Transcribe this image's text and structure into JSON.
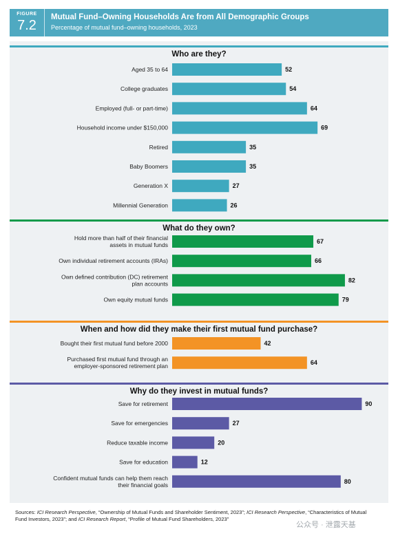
{
  "figure": {
    "word": "FIGURE",
    "number": "7.2"
  },
  "title": "Mutual Fund–Owning Households Are from All Demographic Groups",
  "subtitle": "Percentage of mutual fund–owning households, 2023",
  "chart_data": {
    "type": "bar",
    "orientation": "horizontal",
    "xlim": [
      0,
      100
    ],
    "grid": false,
    "show_values": true,
    "sections": [
      {
        "title": "Who are they?",
        "color": "#3fa9bf",
        "categories": [
          "Aged 35 to 64",
          "College graduates",
          "Employed (full- or part-time)",
          "Household income under $150,000",
          "Retired",
          "Baby Boomers",
          "Generation X",
          "Millennial Generation"
        ],
        "values": [
          52,
          54,
          64,
          69,
          35,
          35,
          27,
          26
        ]
      },
      {
        "title": "What do they own?",
        "color": "#0f9a4a",
        "categories": [
          "Hold more than half of their financial assets in mutual funds",
          "Own individual retirement accounts (IRAs)",
          "Own defined contribution (DC) retirement plan accounts",
          "Own equity mutual funds"
        ],
        "values": [
          67,
          66,
          82,
          79
        ]
      },
      {
        "title": "When and how did they make their first mutual fund purchase?",
        "color": "#f39325",
        "categories": [
          "Bought their first mutual fund before 2000",
          "Purchased first mutual fund through an employer-sponsored retirement plan"
        ],
        "values": [
          42,
          64
        ]
      },
      {
        "title": "Why do they invest in mutual funds?",
        "color": "#5c5aa5",
        "categories": [
          "Save for retirement",
          "Save for emergencies",
          "Reduce taxable income",
          "Save for education",
          "Confident mutual funds can help them reach their financial goals"
        ],
        "values": [
          90,
          27,
          20,
          12,
          80
        ]
      }
    ]
  },
  "sources_html": "Sources: <i>ICI Research Perspective</i>, “Ownership of Mutual Funds and Shareholder Sentiment, 2023”; <i>ICI Research Perspective</i>, “Characteristics of Mutual Fund Investors, 2023”; and <i>ICI Research Report</i>, “Profile of Mutual Fund Shareholders, 2023”",
  "watermark": "公众号 · 泄露天基"
}
